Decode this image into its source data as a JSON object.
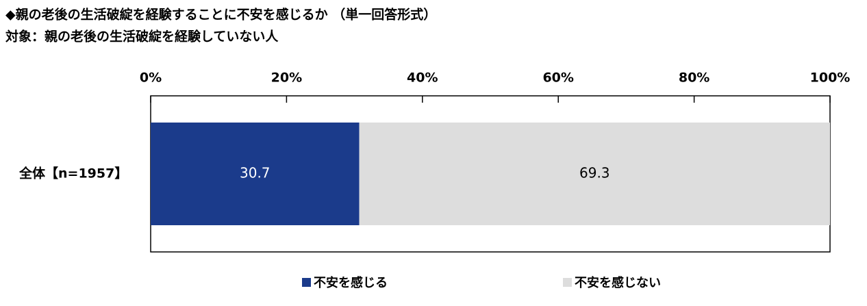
{
  "chart_data": {
    "type": "stacked-bar-horizontal",
    "title": "◆親の老後の生活破綻を経験することに不安を感じるか （単一回答形式）",
    "subtitle": "対象：親の老後の生活破綻を経験していない人",
    "categories": [
      "全体【n=1957】"
    ],
    "series": [
      {
        "name": "不安を感じる",
        "color": "#1b3b8b",
        "label_color": "#ffffff",
        "values": [
          30.7
        ]
      },
      {
        "name": "不安を感じない",
        "color": "#dddddd",
        "label_color": "#000000",
        "values": [
          69.3
        ]
      }
    ],
    "xlim": [
      0,
      100
    ],
    "xticks": [
      {
        "value": 0,
        "label": "0%"
      },
      {
        "value": 20,
        "label": "20%"
      },
      {
        "value": 40,
        "label": "40%"
      },
      {
        "value": 60,
        "label": "60%"
      },
      {
        "value": 80,
        "label": "80%"
      },
      {
        "value": 100,
        "label": "100%"
      }
    ],
    "legend": "bottom"
  }
}
